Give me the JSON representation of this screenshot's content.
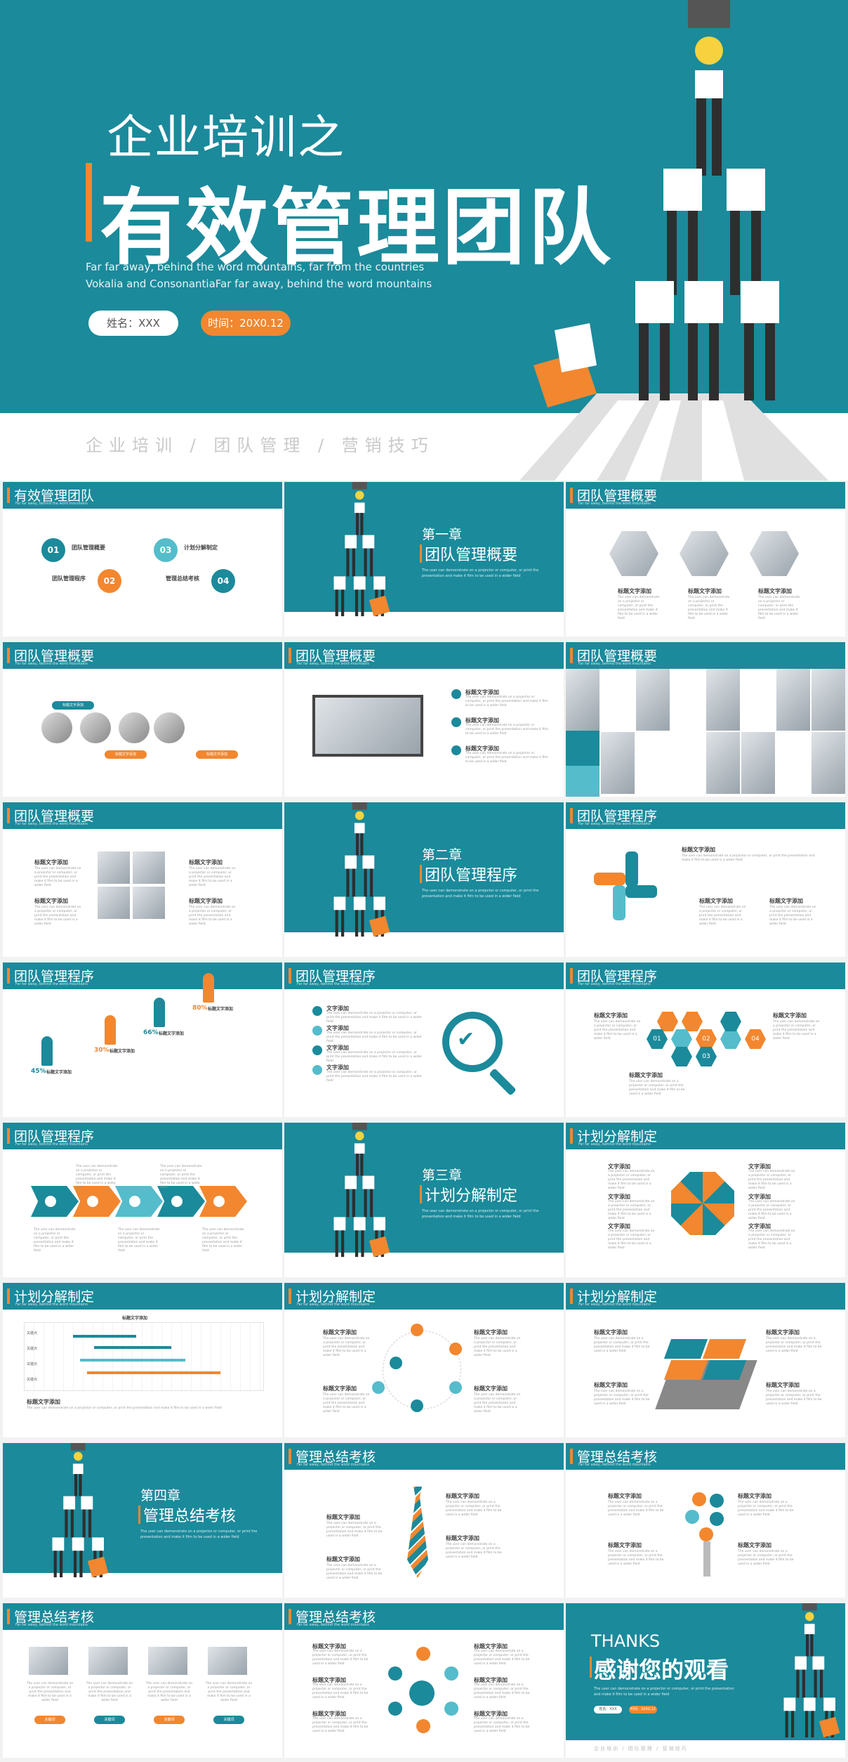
{
  "hero": {
    "title_line1": "企业培训之",
    "title_line2": "有效管理团队",
    "subtitle": "Far far away, behind the word mountains, far from the countries Vokalia and ConsonantiaFar far away, behind the word mountains",
    "name_label": "姓名：XXX",
    "time_label": "时间：20X0.12",
    "tags": "企业培训 / 团队管理 / 营销技巧"
  },
  "header_sub": "Far far away, behind the word mountains",
  "body_text": "The user can demonstrate on a projector or computer, or print the presentation and make it film to be used in a wider field",
  "slides": [
    {
      "title": "有效管理团队",
      "items": [
        "01",
        "团队管理概要",
        "03",
        "计划分解制定",
        "团队管理程序",
        "02",
        "管理总结考核",
        "04"
      ]
    },
    {
      "chapter": "第一章",
      "name": "团队管理概要"
    },
    {
      "title": "团队管理概要",
      "labels": [
        "标题文字添加",
        "标题文字添加",
        "标题文字添加"
      ]
    },
    {
      "title": "团队管理概要",
      "labels": [
        "标题文字添加",
        "标题文字添加",
        "标题文字添加"
      ]
    },
    {
      "title": "团队管理概要",
      "labels": [
        "标题文字添加",
        "标题文字添加",
        "标题文字添加"
      ]
    },
    {
      "title": "团队管理概要"
    },
    {
      "title": "团队管理概要",
      "labels": [
        "标题文字添加",
        "标题文字添加",
        "标题文字添加",
        "标题文字添加"
      ]
    },
    {
      "chapter": "第二章",
      "name": "团队管理程序"
    },
    {
      "title": "团队管理程序",
      "labels": [
        "标题文字添加",
        "标题文字添加",
        "标题文字添加"
      ]
    },
    {
      "title": "团队管理程序",
      "labels": [
        "45%",
        "标题文字添加",
        "30%",
        "标题文字添加",
        "66%",
        "标题文字添加",
        "80%",
        "标题文字添加"
      ]
    },
    {
      "title": "团队管理程序",
      "labels": [
        "文字添加",
        "文字添加",
        "文字添加",
        "文字添加"
      ]
    },
    {
      "title": "团队管理程序",
      "labels": [
        "标题文字添加",
        "标题文字添加",
        "标题文字添加",
        "01",
        "02",
        "03",
        "04"
      ]
    },
    {
      "title": "团队管理程序"
    },
    {
      "chapter": "第三章",
      "name": "计划分解制定"
    },
    {
      "title": "计划分解制定",
      "labels": [
        "文字添加",
        "文字添加",
        "文字添加",
        "文字添加",
        "文字添加",
        "文字添加"
      ]
    },
    {
      "title": "计划分解制定",
      "labels": [
        "标题文字添加",
        "关键点",
        "关键点",
        "关键点",
        "关键点",
        "标题文字添加"
      ]
    },
    {
      "title": "计划分解制定",
      "labels": [
        "标题文字添加",
        "标题文字添加",
        "标题文字添加",
        "标题文字添加"
      ]
    },
    {
      "title": "计划分解制定",
      "labels": [
        "标题文字添加",
        "标题文字添加",
        "标题文字添加",
        "标题文字添加"
      ]
    },
    {
      "chapter": "第四章",
      "name": "管理总结考核"
    },
    {
      "title": "管理总结考核",
      "labels": [
        "标题文字添加",
        "标题文字添加",
        "标题文字添加",
        "标题文字添加"
      ]
    },
    {
      "title": "管理总结考核",
      "labels": [
        "标题文字添加",
        "标题文字添加",
        "标题文字添加",
        "标题文字添加"
      ]
    },
    {
      "title": "管理总结考核",
      "labels": [
        "关键词",
        "关键词",
        "关键词",
        "关键词"
      ]
    },
    {
      "title": "管理总结考核",
      "labels": [
        "标题文字添加",
        "标题文字添加",
        "标题文字添加",
        "标题文字添加",
        "标题文字添加",
        "标题文字添加"
      ]
    },
    {
      "thanks": "THANKS",
      "name": "感谢您的观看",
      "tags": "企业培训 / 团队管理 / 营销技巧",
      "pill1": "姓名：XXX",
      "pill2": "时间：20X0.12"
    }
  ]
}
